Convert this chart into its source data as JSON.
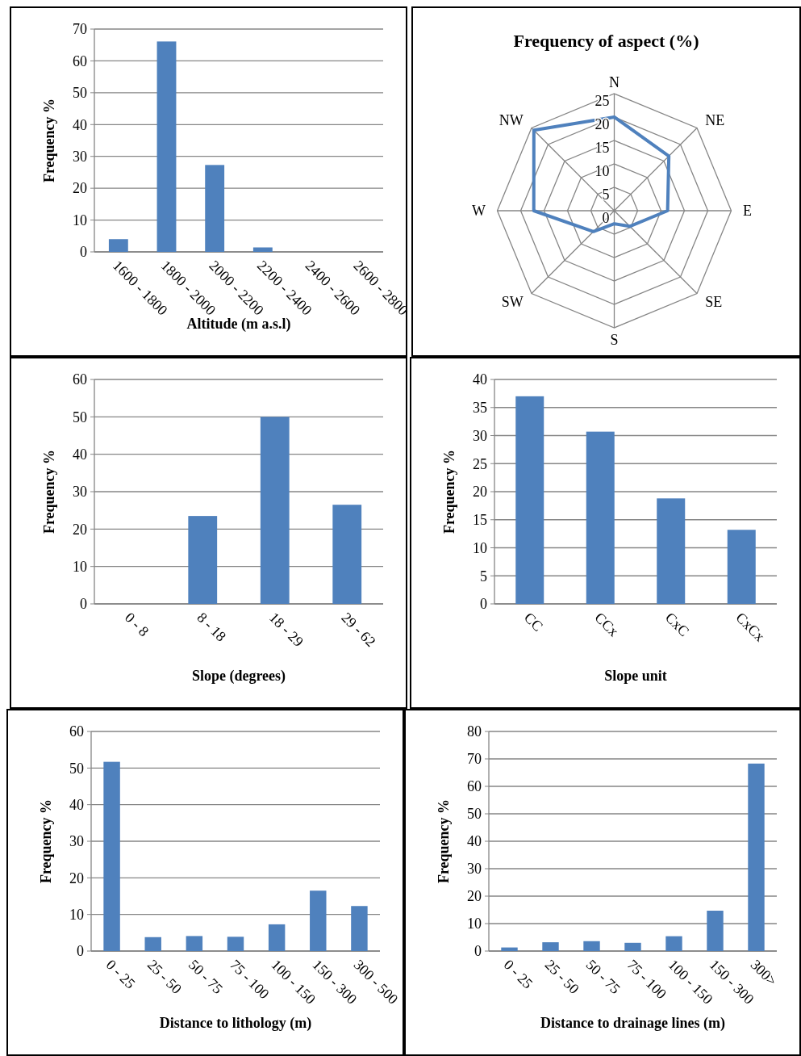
{
  "chart_data": [
    {
      "type": "bar",
      "xlabel": "Altitude (m a.s.l)",
      "ylabel": "Frequency %",
      "categories": [
        "1600 - 1800",
        "1800 - 2000",
        "2000 - 2200",
        "2200 - 2400",
        "2400 - 2600",
        "2600 - 2800"
      ],
      "values": [
        4.0,
        66.1,
        27.3,
        1.4,
        0,
        0
      ],
      "color": "#4f81bd",
      "ylim": [
        0,
        70
      ],
      "yticks": [
        0,
        10,
        20,
        30,
        40,
        50,
        60,
        70
      ],
      "grid": "y"
    },
    {
      "type": "radar",
      "title": "Frequency of aspect (%)",
      "categories": [
        "N",
        "NE",
        "E",
        "SE",
        "S",
        "SW",
        "W",
        "NW"
      ],
      "series": [
        {
          "color": "#4f81bd",
          "values": [
            20,
            16.5,
            11.4,
            4.7,
            2.8,
            6.3,
            17.2,
            24.3
          ]
        }
      ],
      "ylim": [
        0,
        25
      ],
      "yticks": [
        0,
        5,
        10,
        15,
        20,
        25
      ],
      "grid": true,
      "marker": "none"
    },
    {
      "type": "bar",
      "xlabel": "Slope (degrees)",
      "ylabel": "Frequency %",
      "categories": [
        "0 - 8",
        "8 - 18",
        "18 - 29",
        "29 - 62"
      ],
      "values": [
        0,
        23.5,
        50,
        26.5
      ],
      "color": "#4f81bd",
      "ylim": [
        0,
        60
      ],
      "yticks": [
        0,
        10,
        20,
        30,
        40,
        50,
        60
      ],
      "grid": "y"
    },
    {
      "type": "bar",
      "xlabel": "Slope unit",
      "ylabel": "Frequency %",
      "categories": [
        "CC",
        "CCx",
        "CxC",
        "CxCx"
      ],
      "values": [
        37,
        30.7,
        18.8,
        13.2
      ],
      "color": "#4f81bd",
      "ylim": [
        0,
        40
      ],
      "yticks": [
        0,
        5,
        10,
        15,
        20,
        25,
        30,
        35,
        40
      ],
      "grid": "y"
    },
    {
      "type": "bar",
      "xlabel": "Distance to lithology (m)",
      "ylabel": "Frequency %",
      "categories": [
        "0 - 25",
        "25 - 50",
        "50 - 75",
        "75 - 100",
        "100 - 150",
        "150 - 300",
        "300 - 500"
      ],
      "values": [
        51.7,
        3.8,
        4.1,
        3.9,
        7.3,
        16.5,
        12.3
      ],
      "color": "#4f81bd",
      "ylim": [
        0,
        60
      ],
      "yticks": [
        0,
        10,
        20,
        30,
        40,
        50,
        60
      ],
      "grid": "y"
    },
    {
      "type": "bar",
      "xlabel": "Distance to drainage lines (m)",
      "ylabel": "Frequency %",
      "categories": [
        "0 - 25",
        "25 - 50",
        "50 - 75",
        "75 - 100",
        "100 - 150",
        "150 - 300",
        "300>"
      ],
      "values": [
        1.3,
        3.2,
        3.6,
        3.0,
        5.4,
        14.7,
        68.3
      ],
      "color": "#4f81bd",
      "ylim": [
        0,
        80
      ],
      "yticks": [
        0,
        10,
        20,
        30,
        40,
        50,
        60,
        70,
        80
      ],
      "grid": "y"
    }
  ]
}
